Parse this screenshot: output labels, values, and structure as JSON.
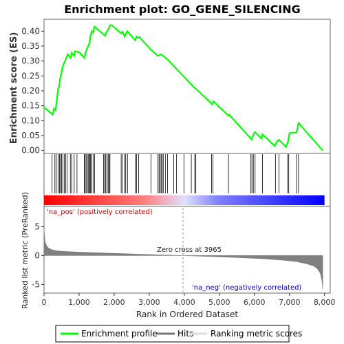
{
  "chart_data": {
    "type": "line",
    "title": "Enrichment plot: GO_GENE_SILENCING",
    "xlabel": "Rank in Ordered Dataset",
    "xlim": [
      0,
      8000
    ],
    "x_ticks": [
      0,
      1000,
      2000,
      3000,
      4000,
      5000,
      6000,
      7000,
      8000
    ],
    "x_tick_labels": [
      "0",
      "1,000",
      "2,000",
      "3,000",
      "4,000",
      "5,000",
      "6,000",
      "7,000",
      "8,000"
    ],
    "top_panel": {
      "ylabel": "Enrichment score (ES)",
      "ylim": [
        -0.01,
        0.44
      ],
      "y_ticks": [
        0.0,
        0.05,
        0.1,
        0.15,
        0.2,
        0.25,
        0.3,
        0.35,
        0.4
      ],
      "y_tick_labels": [
        "0.00",
        "0.05",
        "0.10",
        "0.15",
        "0.20",
        "0.25",
        "0.30",
        "0.35",
        "0.40"
      ],
      "series": [
        {
          "name": "Enrichment profile",
          "color": "#00ff00",
          "x": [
            0,
            20,
            250,
            280,
            330,
            370,
            400,
            430,
            460,
            490,
            520,
            560,
            600,
            640,
            680,
            760,
            790,
            860,
            880,
            1000,
            1150,
            1180,
            1220,
            1260,
            1290,
            1320,
            1360,
            1400,
            1440,
            1740,
            1790,
            1840,
            1880,
            1930,
            2200,
            2240,
            2300,
            2370,
            2600,
            2640,
            2700,
            2720,
            3050,
            3250,
            3320,
            3360,
            3480,
            4280,
            4320,
            4800,
            4830,
            5260,
            5280,
            5920,
            5960,
            6010,
            6200,
            6230,
            6580,
            6640,
            6700,
            6900,
            6960,
            7000,
            7200,
            7260,
            7950
          ],
          "y": [
            0.147,
            0.143,
            0.12,
            0.14,
            0.135,
            0.175,
            0.205,
            0.215,
            0.24,
            0.255,
            0.275,
            0.29,
            0.3,
            0.312,
            0.322,
            0.31,
            0.328,
            0.318,
            0.332,
            0.33,
            0.31,
            0.325,
            0.34,
            0.35,
            0.358,
            0.383,
            0.4,
            0.395,
            0.415,
            0.385,
            0.398,
            0.408,
            0.42,
            0.42,
            0.393,
            0.398,
            0.382,
            0.4,
            0.37,
            0.382,
            0.378,
            0.38,
            0.338,
            0.317,
            0.322,
            0.32,
            0.31,
            0.212,
            0.208,
            0.155,
            0.165,
            0.117,
            0.12,
            0.037,
            0.05,
            0.062,
            0.04,
            0.054,
            0.015,
            0.03,
            0.036,
            0.012,
            0.03,
            0.058,
            0.06,
            0.092,
            0.0
          ]
        }
      ]
    },
    "hits_panel": {
      "legend": "Hits",
      "hit_ranks": [
        230,
        310,
        350,
        400,
        440,
        470,
        500,
        540,
        580,
        620,
        660,
        750,
        790,
        860,
        940,
        1150,
        1170,
        1200,
        1230,
        1260,
        1290,
        1310,
        1330,
        1360,
        1400,
        1440,
        1700,
        1730,
        1760,
        1800,
        1830,
        1860,
        1880,
        2200,
        2230,
        2300,
        2330,
        2380,
        2600,
        2640,
        2700,
        3050,
        3250,
        3280,
        3310,
        3340,
        3370,
        3400,
        3460,
        3520,
        3700,
        3780,
        3990,
        4200,
        4300,
        4330,
        4780,
        4820,
        5260,
        5900,
        5930,
        5970,
        6020,
        6230,
        6600,
        6700,
        6950,
        6980,
        7200,
        7260
      ],
      "color_bar": [
        "#ff0000",
        "#ff8080",
        "#e0e0ff",
        "#8080ff",
        "#0000ff"
      ]
    },
    "bottom_panel": {
      "ylabel": "Ranked list metric (PreRanked)",
      "ylim": [
        -6.5,
        8.5
      ],
      "y_ticks": [
        -5,
        0,
        5
      ],
      "y_tick_labels": [
        "-5",
        "0",
        "5"
      ],
      "series": [
        {
          "name": "Ranking metric scores",
          "color": "#808080",
          "x": [
            0,
            30,
            80,
            150,
            250,
            400,
            600,
            900,
            1300,
            2000,
            3000,
            3965,
            4500,
            5500,
            6200,
            6800,
            7200,
            7500,
            7700,
            7800,
            7880,
            7930,
            7950
          ],
          "y": [
            4.5,
            2.4,
            1.6,
            1.2,
            0.95,
            0.8,
            0.72,
            0.62,
            0.52,
            0.38,
            0.18,
            0.0,
            -0.12,
            -0.35,
            -0.55,
            -0.8,
            -1.05,
            -1.45,
            -1.85,
            -2.3,
            -3.1,
            -4.5,
            -5.8
          ]
        }
      ],
      "annotations": {
        "zero_cross": "Zero cross at 3965",
        "zero_cross_rank": 3965,
        "na_pos": "'na_pos' (positively correlated)",
        "na_neg": "'na_neg' (negatively correlated)"
      }
    },
    "legend": [
      "Enrichment profile",
      "Hits",
      "Ranking metric scores"
    ],
    "legend_position": "bottom"
  }
}
